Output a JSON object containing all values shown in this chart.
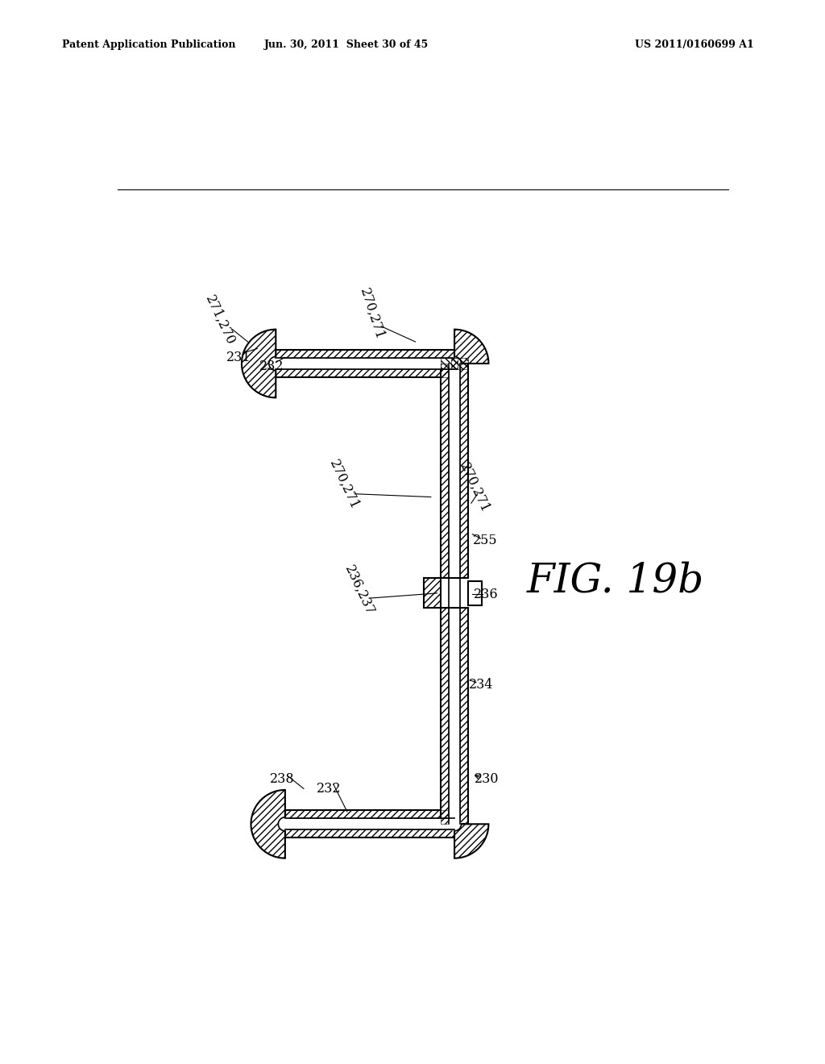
{
  "background_color": "#ffffff",
  "header_left": "Patent Application Publication",
  "header_mid": "Jun. 30, 2011  Sheet 30 of 45",
  "header_right": "US 2011/0160699 A1",
  "figure_label": "FIG. 19b",
  "line_color": "#000000",
  "hatch_color": "#000000"
}
